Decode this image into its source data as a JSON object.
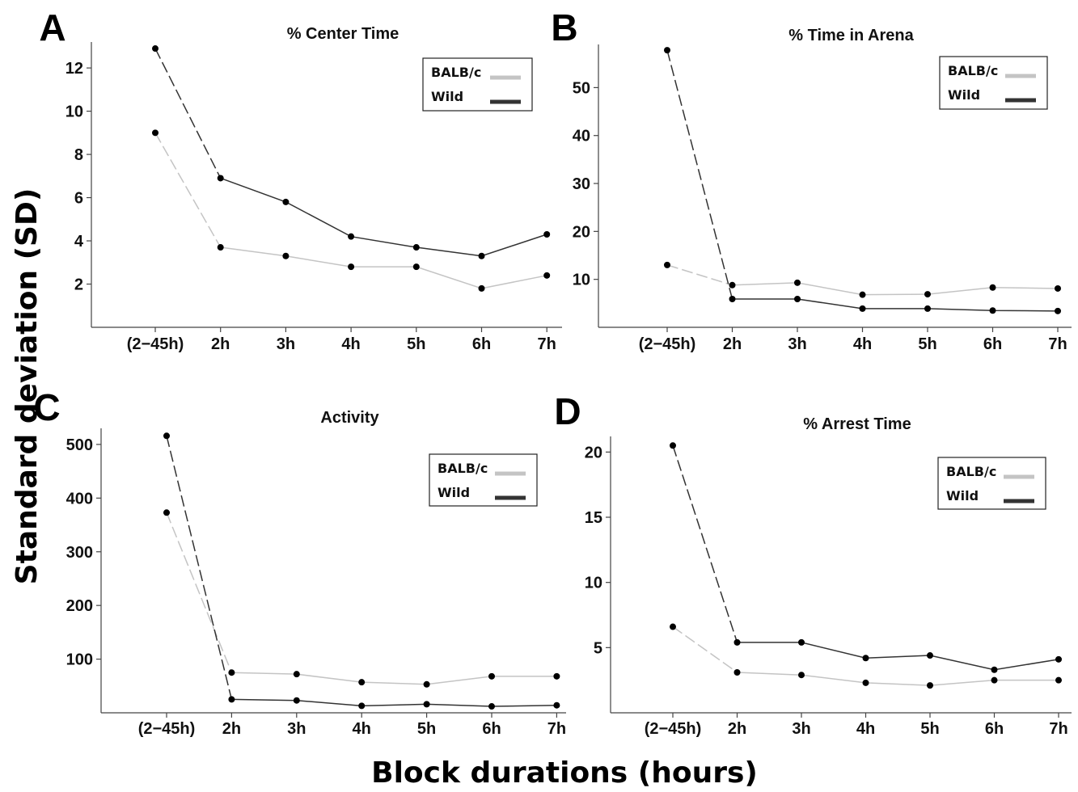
{
  "figure": {
    "ylabel": "Standard deviation (SD)",
    "xlabel": "Block durations (hours)"
  },
  "colors": {
    "BALB/c": "#c4c4c4",
    "Wild": "#333333",
    "marker": "#000000"
  },
  "chart_data": [
    {
      "panel": "A",
      "type": "line",
      "title": "% Center Time",
      "categories": [
        "(2−45h)",
        "2h",
        "3h",
        "4h",
        "5h",
        "6h",
        "7h"
      ],
      "yticks": [
        2,
        4,
        6,
        8,
        10,
        12
      ],
      "ylim": [
        0,
        13.2
      ],
      "legend": "top-right",
      "series": [
        {
          "name": "BALB/c",
          "values": [
            9.0,
            3.7,
            3.3,
            2.8,
            2.8,
            1.8,
            2.4
          ]
        },
        {
          "name": "Wild",
          "values": [
            12.9,
            6.9,
            5.8,
            4.2,
            3.7,
            3.3,
            4.3
          ]
        }
      ]
    },
    {
      "panel": "B",
      "type": "line",
      "title": "% Time in Arena",
      "categories": [
        "(2−45h)",
        "2h",
        "3h",
        "4h",
        "5h",
        "6h",
        "7h"
      ],
      "yticks": [
        10,
        20,
        30,
        40,
        50
      ],
      "ylim": [
        0,
        59
      ],
      "legend": "top-right",
      "series": [
        {
          "name": "BALB/c",
          "values": [
            13.0,
            8.8,
            9.3,
            6.8,
            6.9,
            8.3,
            8.1
          ]
        },
        {
          "name": "Wild",
          "values": [
            57.8,
            5.9,
            5.9,
            3.9,
            3.9,
            3.5,
            3.4
          ]
        }
      ]
    },
    {
      "panel": "C",
      "type": "line",
      "title": "Activity",
      "categories": [
        "(2−45h)",
        "2h",
        "3h",
        "4h",
        "5h",
        "6h",
        "7h"
      ],
      "yticks": [
        100,
        200,
        300,
        400,
        500
      ],
      "ylim": [
        0,
        530
      ],
      "legend": "top-right",
      "series": [
        {
          "name": "BALB/c",
          "values": [
            373,
            75,
            72,
            57,
            53,
            68,
            68
          ]
        },
        {
          "name": "Wild",
          "values": [
            516,
            25,
            23,
            13,
            16,
            12,
            14
          ]
        }
      ]
    },
    {
      "panel": "D",
      "type": "line",
      "title": "% Arrest Time",
      "categories": [
        "(2−45h)",
        "2h",
        "3h",
        "4h",
        "5h",
        "6h",
        "7h"
      ],
      "yticks": [
        5,
        10,
        15,
        20
      ],
      "ylim": [
        0,
        21.2
      ],
      "legend": "top-right",
      "series": [
        {
          "name": "BALB/c",
          "values": [
            6.6,
            3.1,
            2.9,
            2.3,
            2.1,
            2.5,
            2.5
          ]
        },
        {
          "name": "Wild",
          "values": [
            20.5,
            5.4,
            5.4,
            4.2,
            4.4,
            3.3,
            4.1
          ]
        }
      ]
    }
  ]
}
